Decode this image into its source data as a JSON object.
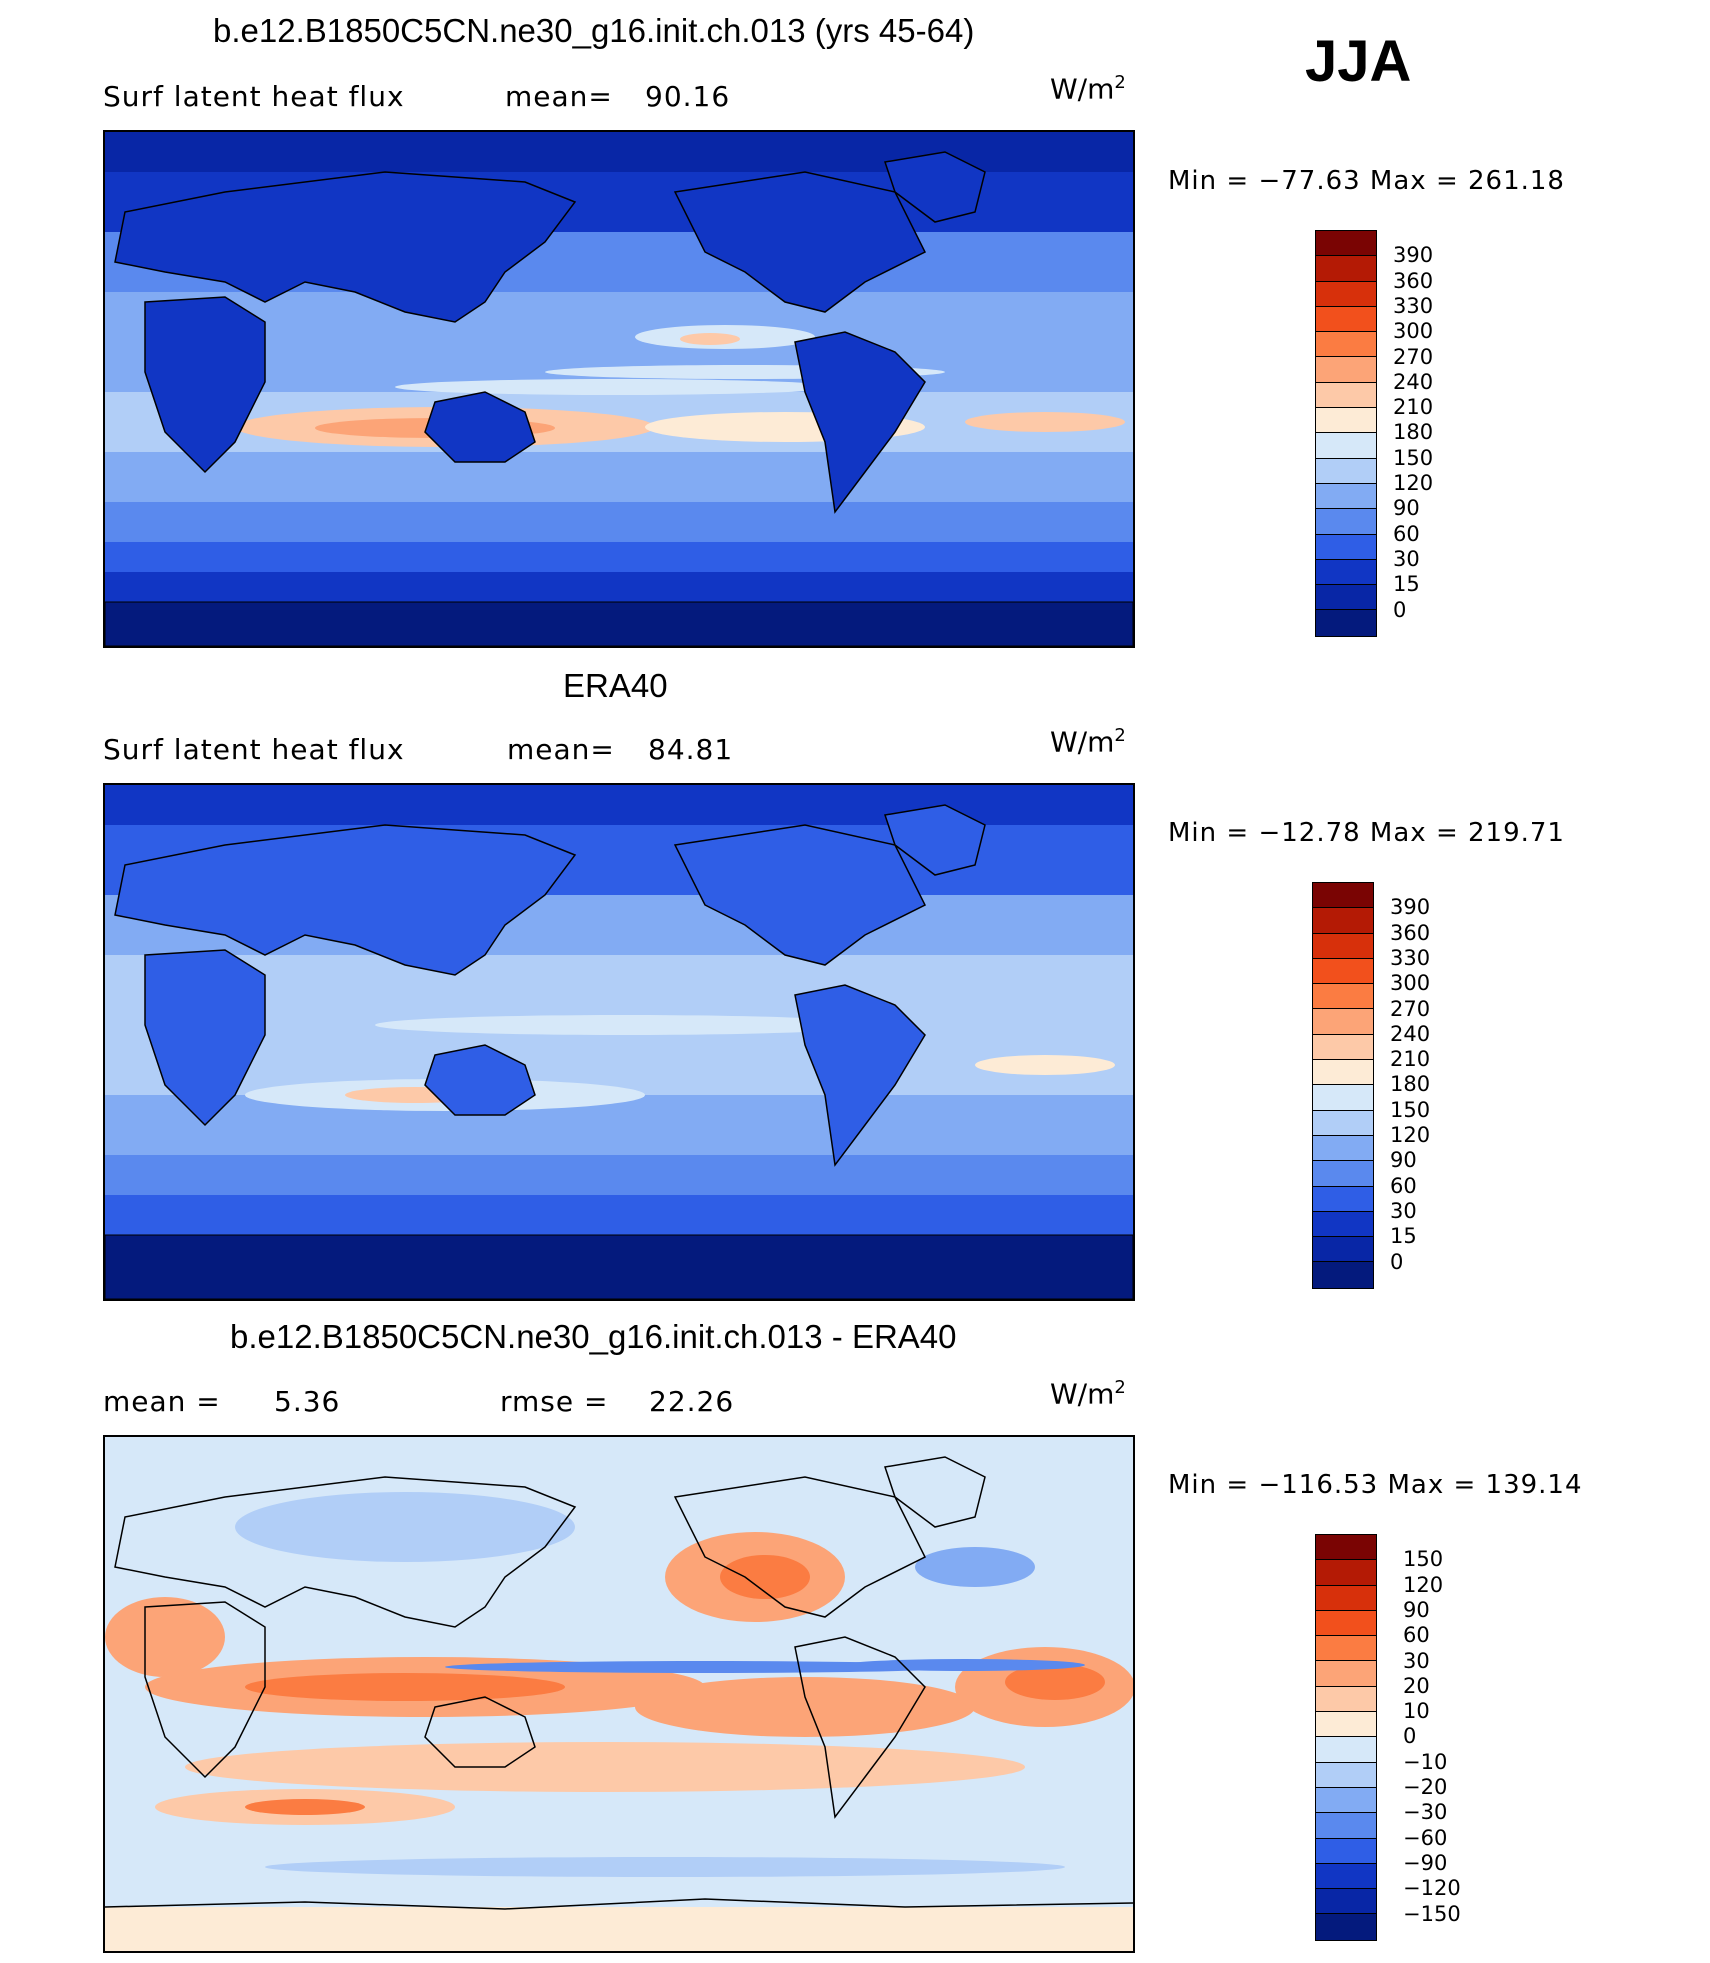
{
  "season": "JJA",
  "panels": [
    {
      "id": "model",
      "title": "b.e12.B1850C5CN.ne30_g16.init.ch.013 (yrs 45-64)",
      "left_label": "Surf  latent  heat  flux",
      "stat_label": "mean=",
      "stat_value": "90.16",
      "stat2_label": "",
      "stat2_value": "",
      "units": "W/m",
      "units_sup": "2",
      "minmax": "Min  =  −77.63  Max  =  261.18",
      "colorbar": {
        "levels": [
          "390",
          "360",
          "330",
          "300",
          "270",
          "240",
          "210",
          "180",
          "150",
          "120",
          "90",
          "60",
          "30",
          "15",
          "0"
        ],
        "colors": [
          "#7a0403",
          "#b41a05",
          "#d7300b",
          "#f2501c",
          "#fb7c42",
          "#fca477",
          "#fdc9a8",
          "#fdebd6",
          "#d6e8f9",
          "#b1cef7",
          "#82abf3",
          "#5a89ee",
          "#2f5ee6",
          "#1136c4",
          "#0826a6",
          "#041a7d"
        ]
      }
    },
    {
      "id": "obs",
      "title": "ERA40",
      "left_label": "Surf  latent  heat  flux",
      "stat_label": "mean=",
      "stat_value": "84.81",
      "stat2_label": "",
      "stat2_value": "",
      "units": "W/m",
      "units_sup": "2",
      "minmax": "Min  =  −12.78  Max  =  219.71",
      "colorbar": {
        "levels": [
          "390",
          "360",
          "330",
          "300",
          "270",
          "240",
          "210",
          "180",
          "150",
          "120",
          "90",
          "60",
          "30",
          "15",
          "0"
        ],
        "colors": [
          "#7a0403",
          "#b41a05",
          "#d7300b",
          "#f2501c",
          "#fb7c42",
          "#fca477",
          "#fdc9a8",
          "#fdebd6",
          "#d6e8f9",
          "#b1cef7",
          "#82abf3",
          "#5a89ee",
          "#2f5ee6",
          "#1136c4",
          "#0826a6",
          "#041a7d"
        ]
      }
    },
    {
      "id": "diff",
      "title": "b.e12.B1850C5CN.ne30_g16.init.ch.013 - ERA40",
      "left_label": "mean  =",
      "stat_label": "5.36",
      "stat_value": "",
      "stat2_label": "rmse  =",
      "stat2_value": "22.26",
      "units": "W/m",
      "units_sup": "2",
      "minmax": "Min  =  −116.53  Max  =  139.14",
      "colorbar": {
        "levels": [
          "150",
          "120",
          "90",
          "60",
          "30",
          "20",
          "10",
          "0",
          "−10",
          "−20",
          "−30",
          "−60",
          "−90",
          "−120",
          "−150"
        ],
        "colors": [
          "#7a0403",
          "#b41a05",
          "#d7300b",
          "#f2501c",
          "#fb7c42",
          "#fca477",
          "#fdc9a8",
          "#fdebd6",
          "#d6e8f9",
          "#b1cef7",
          "#82abf3",
          "#5a89ee",
          "#2f5ee6",
          "#1136c4",
          "#0826a6",
          "#041a7d"
        ]
      }
    }
  ]
}
